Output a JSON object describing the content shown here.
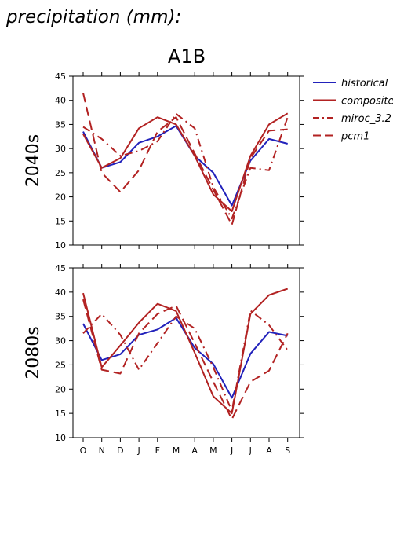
{
  "header": {
    "title": "precipitation (mm):",
    "scenario": "A1B"
  },
  "colors": {
    "historical": "#2222bb",
    "model": "#b22222",
    "axis": "#000000"
  },
  "legend": {
    "placement": "top-right",
    "items": [
      {
        "label": "historical",
        "style": "solid",
        "color_key": "historical"
      },
      {
        "label": "composite",
        "style": "solid",
        "color_key": "model"
      },
      {
        "label": "miroc_3.2",
        "style": "dashdot",
        "color_key": "model"
      },
      {
        "label": "pcm1",
        "style": "dashed",
        "color_key": "model"
      }
    ]
  },
  "chart_data": [
    {
      "type": "line",
      "panel_label": "2040s",
      "categories": [
        "O",
        "N",
        "D",
        "J",
        "F",
        "M",
        "A",
        "M",
        "J",
        "J",
        "A",
        "S"
      ],
      "ylim": [
        10,
        45
      ],
      "yticks": [
        10,
        15,
        20,
        25,
        30,
        35,
        40,
        45
      ],
      "grid": false,
      "show_xtick_labels": false,
      "series": [
        {
          "name": "historical",
          "style": "solid",
          "color_key": "historical",
          "values": [
            33.5,
            26,
            27.2,
            31.2,
            32.5,
            34.7,
            28.5,
            25,
            18.2,
            27.5,
            32,
            31
          ]
        },
        {
          "name": "composite",
          "style": "solid",
          "color_key": "model",
          "values": [
            33,
            26,
            28,
            34.2,
            36.5,
            35,
            28.5,
            20.5,
            17,
            28.5,
            35,
            37.3
          ]
        },
        {
          "name": "miroc_3.2",
          "style": "dashdot",
          "color_key": "model",
          "values": [
            34.5,
            32,
            28.5,
            29.5,
            31.5,
            37.2,
            34.2,
            22,
            15.5,
            26,
            25.5,
            36.5
          ]
        },
        {
          "name": "pcm1",
          "style": "dashed",
          "color_key": "model",
          "values": [
            41.5,
            25,
            21,
            25.5,
            33.5,
            36.5,
            29,
            21.5,
            14.2,
            28,
            33.7,
            34
          ]
        }
      ]
    },
    {
      "type": "line",
      "panel_label": "2080s",
      "categories": [
        "O",
        "N",
        "D",
        "J",
        "F",
        "M",
        "A",
        "M",
        "J",
        "J",
        "A",
        "S"
      ],
      "ylim": [
        10,
        45
      ],
      "yticks": [
        10,
        15,
        20,
        25,
        30,
        35,
        40,
        45
      ],
      "grid": false,
      "show_xtick_labels": true,
      "series": [
        {
          "name": "historical",
          "style": "solid",
          "color_key": "historical",
          "values": [
            33.5,
            26,
            27.2,
            31.2,
            32.3,
            34.7,
            28.5,
            25.2,
            18.2,
            27.3,
            31.8,
            31
          ]
        },
        {
          "name": "composite",
          "style": "solid",
          "color_key": "model",
          "values": [
            39.8,
            24.5,
            29,
            33.7,
            37.6,
            36.1,
            27.5,
            18.5,
            15,
            35.5,
            39.4,
            40.7
          ]
        },
        {
          "name": "miroc_3.2",
          "style": "dashdot",
          "color_key": "model",
          "values": [
            31.5,
            35.5,
            31.2,
            24,
            29.5,
            35,
            32.5,
            24.5,
            15.5,
            36.2,
            33.2,
            28
          ]
        },
        {
          "name": "pcm1",
          "style": "dashed",
          "color_key": "model",
          "values": [
            38.5,
            24,
            23.2,
            31.5,
            35.5,
            37.2,
            29.5,
            21.5,
            13.8,
            21.5,
            23.8,
            31.5
          ]
        }
      ]
    }
  ]
}
